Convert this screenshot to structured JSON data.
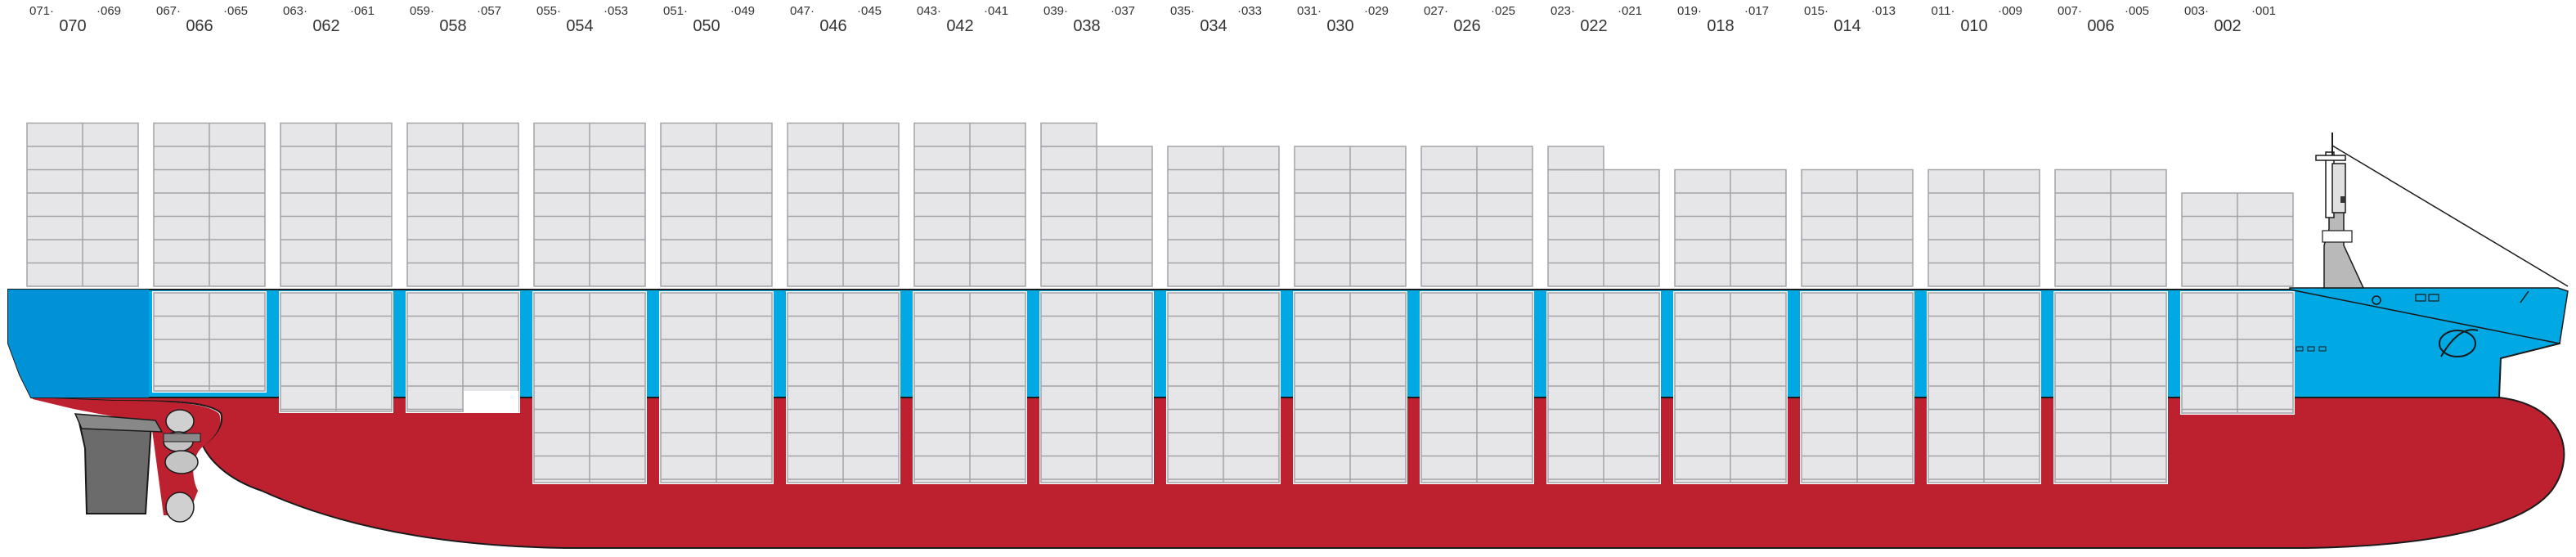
{
  "colors": {
    "hull_red": "#bd2130",
    "hull_blue": "#00a8e4",
    "stern_blue": "#0091d6",
    "container_fill": "#e6e6e9",
    "container_line": "#a3a3a8",
    "outline": "#1a1a1a",
    "superstructure": "#b9b9b9",
    "rudder": "#6b6b6b"
  },
  "bays": [
    {
      "main": "070",
      "left": "071",
      "right": "069",
      "deck_tiers": 7,
      "hold": "stern"
    },
    {
      "main": "066",
      "left": "067",
      "right": "065",
      "deck_tiers": 7,
      "hold": "aft1"
    },
    {
      "main": "062",
      "left": "063",
      "right": "061",
      "deck_tiers": 7,
      "hold": "aft2"
    },
    {
      "main": "058",
      "left": "059",
      "right": "057",
      "deck_tiers": 7,
      "hold": "aft3"
    },
    {
      "main": "054",
      "left": "055",
      "right": "053",
      "deck_tiers": 7,
      "hold": "full"
    },
    {
      "main": "050",
      "left": "051",
      "right": "049",
      "deck_tiers": 7,
      "hold": "full"
    },
    {
      "main": "046",
      "left": "047",
      "right": "045",
      "deck_tiers": 7,
      "hold": "full"
    },
    {
      "main": "042",
      "left": "043",
      "right": "041",
      "deck_tiers": 7,
      "hold": "full"
    },
    {
      "main": "038",
      "left": "039",
      "right": "037",
      "deck_tiers": 6,
      "extra_left": true,
      "hold": "full"
    },
    {
      "main": "034",
      "left": "035",
      "right": "033",
      "deck_tiers": 6,
      "hold": "full"
    },
    {
      "main": "030",
      "left": "031",
      "right": "029",
      "deck_tiers": 6,
      "hold": "full"
    },
    {
      "main": "026",
      "left": "027",
      "right": "025",
      "deck_tiers": 6,
      "hold": "full"
    },
    {
      "main": "022",
      "left": "023",
      "right": "021",
      "deck_tiers": 5,
      "extra_left": true,
      "hold": "full"
    },
    {
      "main": "018",
      "left": "019",
      "right": "017",
      "deck_tiers": 5,
      "hold": "full"
    },
    {
      "main": "014",
      "left": "015",
      "right": "013",
      "deck_tiers": 5,
      "hold": "full"
    },
    {
      "main": "010",
      "left": "011",
      "right": "009",
      "deck_tiers": 5,
      "hold": "full"
    },
    {
      "main": "006",
      "left": "007",
      "right": "005",
      "deck_tiers": 5,
      "hold": "full"
    },
    {
      "main": "002",
      "left": "003",
      "right": "001",
      "deck_tiers": 4,
      "hold": "bow"
    }
  ]
}
